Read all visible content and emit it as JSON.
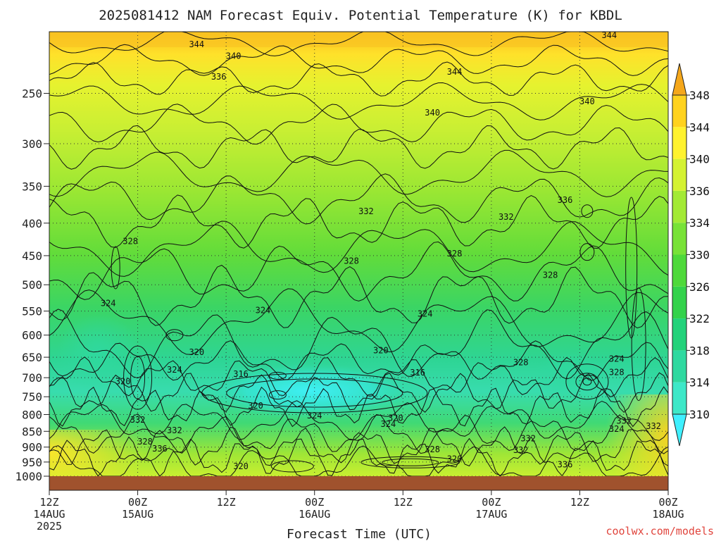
{
  "chart_data": {
    "type": "heatmap",
    "title": "2025081412 NAM Forecast Equiv. Potential Temperature (K) for KBDL",
    "xlabel": "Forecast Time (UTC)",
    "ylabel": "",
    "y_ticks": [
      "250",
      "300",
      "350",
      "400",
      "450",
      "500",
      "550",
      "600",
      "650",
      "700",
      "750",
      "800",
      "850",
      "900",
      "950",
      "1000"
    ],
    "y_values": [
      250,
      300,
      350,
      400,
      450,
      500,
      550,
      600,
      650,
      700,
      750,
      800,
      850,
      900,
      950,
      1000
    ],
    "y_scale": "log",
    "ylim": [
      200,
      1000
    ],
    "x_range_hours": [
      0,
      84
    ],
    "x_ticks": [
      {
        "hour": 0,
        "line1": "12Z",
        "line2": "14AUG",
        "line3": "2025"
      },
      {
        "hour": 12,
        "line1": "00Z",
        "line2": "15AUG",
        "line3": ""
      },
      {
        "hour": 24,
        "line1": "12Z",
        "line2": "",
        "line3": ""
      },
      {
        "hour": 36,
        "line1": "00Z",
        "line2": "16AUG",
        "line3": ""
      },
      {
        "hour": 48,
        "line1": "12Z",
        "line2": "",
        "line3": ""
      },
      {
        "hour": 60,
        "line1": "00Z",
        "line2": "17AUG",
        "line3": ""
      },
      {
        "hour": 72,
        "line1": "12Z",
        "line2": "",
        "line3": ""
      },
      {
        "hour": 84,
        "line1": "00Z",
        "line2": "18AUG",
        "line3": ""
      }
    ],
    "colorbar": {
      "levels": [
        310,
        314,
        318,
        322,
        326,
        330,
        334,
        336,
        340,
        344,
        348
      ],
      "labels": [
        "310",
        "314",
        "318",
        "322",
        "326",
        "330",
        "334",
        "336",
        "340",
        "344",
        "348"
      ],
      "colors": [
        "#3ff0ff",
        "#3de8c8",
        "#2fd9a0",
        "#22d27a",
        "#33d24b",
        "#4ed93a",
        "#78e237",
        "#a3ea35",
        "#d4f232",
        "#fff22e",
        "#ffd21e",
        "#f5a71a"
      ]
    },
    "grid": true,
    "ground_color": "#a0522d",
    "contour_labels": [
      {
        "value": "344",
        "hour": 20,
        "p": 210
      },
      {
        "value": "344",
        "hour": 76,
        "p": 203
      },
      {
        "value": "344",
        "hour": 55,
        "p": 232
      },
      {
        "value": "340",
        "hour": 25,
        "p": 219
      },
      {
        "value": "340",
        "hour": 52,
        "p": 269
      },
      {
        "value": "340",
        "hour": 73,
        "p": 258
      },
      {
        "value": "336",
        "hour": 23,
        "p": 236
      },
      {
        "value": "336",
        "hour": 70,
        "p": 369
      },
      {
        "value": "332",
        "hour": 43,
        "p": 384
      },
      {
        "value": "332",
        "hour": 62,
        "p": 392
      },
      {
        "value": "328",
        "hour": 11,
        "p": 428
      },
      {
        "value": "328",
        "hour": 41,
        "p": 460
      },
      {
        "value": "328",
        "hour": 55,
        "p": 448
      },
      {
        "value": "328",
        "hour": 68,
        "p": 484
      },
      {
        "value": "324",
        "hour": 8,
        "p": 536
      },
      {
        "value": "324",
        "hour": 29,
        "p": 550
      },
      {
        "value": "324",
        "hour": 51,
        "p": 557
      },
      {
        "value": "324",
        "hour": 77,
        "p": 656
      },
      {
        "value": "320",
        "hour": 20,
        "p": 640
      },
      {
        "value": "320",
        "hour": 45,
        "p": 636
      },
      {
        "value": "320",
        "hour": 10,
        "p": 711
      },
      {
        "value": "316",
        "hour": 26,
        "p": 693
      },
      {
        "value": "316",
        "hour": 50,
        "p": 689
      },
      {
        "value": "324",
        "hour": 17,
        "p": 682
      },
      {
        "value": "328",
        "hour": 64,
        "p": 664
      },
      {
        "value": "328",
        "hour": 77,
        "p": 688
      },
      {
        "value": "320",
        "hour": 28,
        "p": 777
      },
      {
        "value": "324",
        "hour": 36,
        "p": 805
      },
      {
        "value": "320",
        "hour": 47,
        "p": 812
      },
      {
        "value": "324",
        "hour": 46,
        "p": 830
      },
      {
        "value": "332",
        "hour": 12,
        "p": 818
      },
      {
        "value": "332",
        "hour": 17,
        "p": 849
      },
      {
        "value": "328",
        "hour": 13,
        "p": 885
      },
      {
        "value": "336",
        "hour": 15,
        "p": 908
      },
      {
        "value": "332",
        "hour": 65,
        "p": 875
      },
      {
        "value": "332",
        "hour": 64,
        "p": 912
      },
      {
        "value": "332",
        "hour": 78,
        "p": 821
      },
      {
        "value": "324",
        "hour": 77,
        "p": 845
      },
      {
        "value": "332",
        "hour": 82,
        "p": 837
      },
      {
        "value": "328",
        "hour": 52,
        "p": 910
      },
      {
        "value": "320",
        "hour": 55,
        "p": 942
      },
      {
        "value": "320",
        "hour": 26,
        "p": 968
      },
      {
        "value": "336",
        "hour": 70,
        "p": 961
      }
    ]
  },
  "credit": "coolwx.com/models"
}
